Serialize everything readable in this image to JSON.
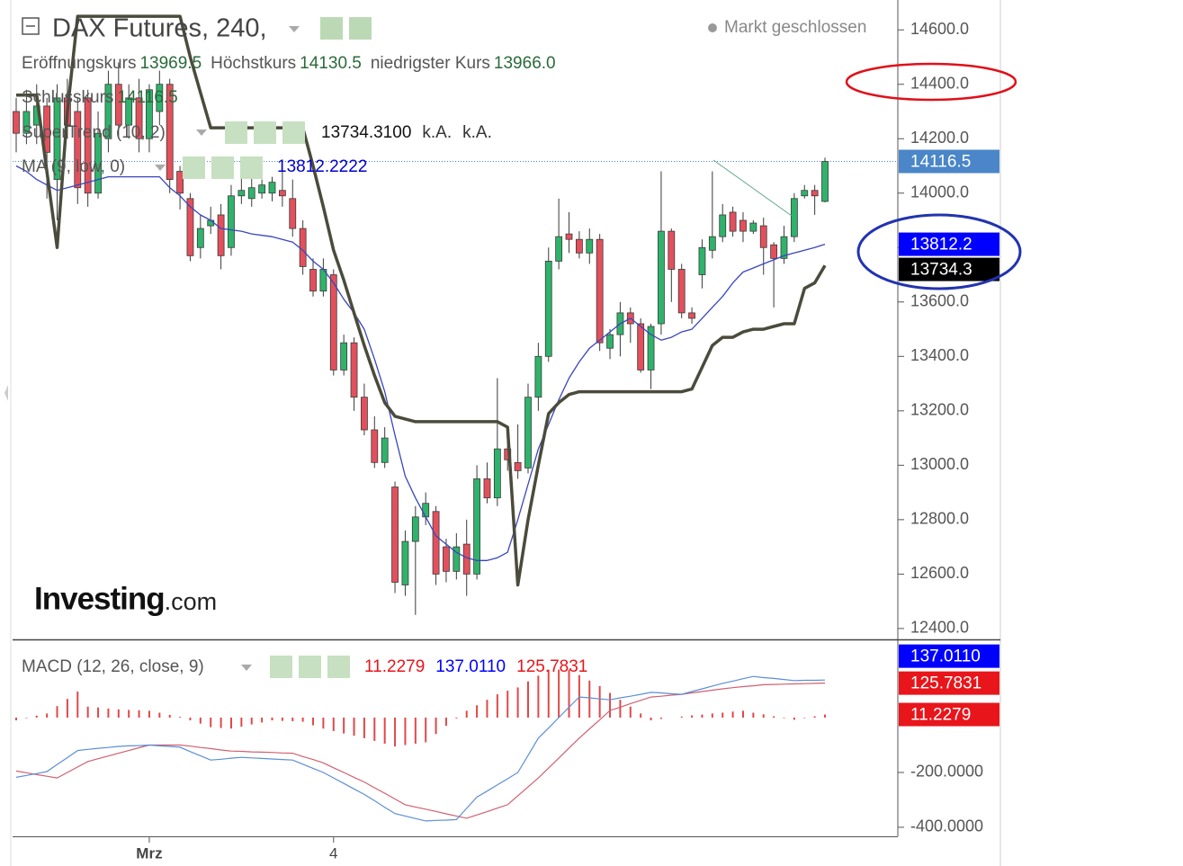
{
  "chart_data": [
    {
      "type": "candlestick",
      "title": "DAX Futures, 240,",
      "status": "Markt geschlossen",
      "ohlc_legend": [
        {
          "label": "Eröffnungskurs",
          "value": "13969.5"
        },
        {
          "label": "Höchstkurs",
          "value": "14130.5"
        },
        {
          "label": "niedrigster Kurs",
          "value": "13966.0"
        },
        {
          "label": "Schlusskurs",
          "value": "14116.5"
        }
      ],
      "categories": [
        null,
        null,
        null,
        null,
        null,
        null,
        null,
        null,
        null,
        null,
        null,
        null,
        null,
        "Mrz",
        null,
        null,
        null,
        null,
        null,
        null,
        null,
        null,
        null,
        null,
        null,
        null,
        null,
        null,
        null,
        null,
        null,
        "4",
        null,
        null,
        null,
        null,
        null,
        null,
        null,
        null,
        null,
        null,
        null,
        null,
        null,
        null,
        null,
        null,
        null,
        null,
        null,
        null,
        null,
        null,
        null,
        null,
        null,
        null,
        null,
        null,
        null,
        null,
        null,
        null,
        null,
        null,
        null,
        null,
        null,
        null,
        null,
        null,
        null,
        null,
        null,
        null,
        null,
        null,
        null,
        null
      ],
      "open": [
        14300,
        14220,
        14250,
        14320,
        14050,
        14350,
        14300,
        14350,
        14000,
        14200,
        14400,
        14250,
        14350,
        14200,
        14300,
        14400,
        14080,
        13980,
        13800,
        13880,
        13920,
        13800,
        13990,
        13980,
        14000,
        14000,
        14010,
        13980,
        13870,
        13720,
        13640,
        13700,
        13350,
        13450,
        13250,
        13130,
        13010,
        12920,
        12560,
        12720,
        12810,
        12830,
        12700,
        12610,
        12710,
        12600,
        12950,
        12880,
        13060,
        13010,
        12990,
        13250,
        13400,
        13750,
        13850,
        13830,
        13780,
        13830,
        13430,
        13480,
        13560,
        13520,
        13350,
        13520,
        13860,
        13720,
        13560,
        13700,
        13790,
        13840,
        13930,
        13900,
        13860,
        13880,
        13810,
        13760,
        13840,
        13990,
        14010,
        13969.5
      ],
      "high": [
        14350,
        14380,
        14400,
        14350,
        14400,
        14420,
        14350,
        14380,
        14300,
        14450,
        14480,
        14400,
        14420,
        14400,
        14450,
        14420,
        14100,
        14000,
        13920,
        13950,
        13960,
        14030,
        14080,
        14120,
        14050,
        14060,
        14080,
        14050,
        13900,
        13760,
        13760,
        13720,
        13480,
        13470,
        13300,
        13180,
        13140,
        12940,
        12760,
        12850,
        12900,
        12850,
        12730,
        12750,
        12800,
        13000,
        13010,
        13320,
        13100,
        13150,
        13300,
        13450,
        13800,
        13980,
        13930,
        13860,
        13870,
        13850,
        13500,
        13600,
        13580,
        13540,
        13520,
        14080,
        13870,
        13740,
        13580,
        13830,
        14080,
        13960,
        13950,
        13930,
        13900,
        13910,
        13820,
        13880,
        14000,
        14030,
        14030,
        14130.5
      ],
      "low": [
        14150,
        14180,
        14180,
        13980,
        13900,
        14200,
        13960,
        13950,
        13980,
        14150,
        14200,
        14200,
        14150,
        14150,
        14250,
        14000,
        13940,
        13750,
        13760,
        13850,
        13720,
        13770,
        13960,
        13950,
        13980,
        13970,
        13950,
        13840,
        13700,
        13620,
        13620,
        13330,
        13330,
        13200,
        13110,
        12990,
        12990,
        12530,
        12520,
        12450,
        12780,
        12560,
        12570,
        12580,
        12520,
        12580,
        12860,
        12850,
        12980,
        12950,
        12970,
        13200,
        13380,
        13720,
        13780,
        13760,
        13740,
        13420,
        13390,
        13400,
        13450,
        13340,
        13280,
        13480,
        13600,
        13540,
        13520,
        13650,
        13760,
        13820,
        13840,
        13820,
        13850,
        13700,
        13580,
        13740,
        13820,
        13980,
        13920,
        13966
      ],
      "close": [
        14220,
        14300,
        14320,
        14150,
        14350,
        14250,
        14020,
        14000,
        14220,
        14400,
        14250,
        14350,
        14200,
        14380,
        14400,
        14050,
        14000,
        13770,
        13870,
        13900,
        13770,
        13990,
        14010,
        14020,
        14030,
        14040,
        13990,
        13870,
        13730,
        13640,
        13720,
        13350,
        13450,
        13250,
        13130,
        13010,
        13100,
        12570,
        12720,
        12810,
        12860,
        12600,
        12610,
        12700,
        12600,
        12950,
        12880,
        13060,
        13020,
        12980,
        13250,
        13400,
        13750,
        13840,
        13830,
        13780,
        13830,
        13450,
        13480,
        13560,
        13520,
        13350,
        13510,
        13860,
        13720,
        13560,
        13540,
        13800,
        13840,
        13920,
        13860,
        13860,
        13890,
        13800,
        13760,
        13840,
        13980,
        14010,
        13990,
        14116.5
      ],
      "up_color": "#2fb36b",
      "down_color": "#e3505c",
      "last_label": "14116.5",
      "last_label_color": "#4a86c8",
      "series": [
        {
          "name": "SuperTrend (10, 2)",
          "color": "#4b4b3c",
          "values": [
            14360,
            14360,
            14360,
            14080,
            13800,
            14300,
            14650,
            14650,
            14650,
            14650,
            14650,
            14650,
            14650,
            14650,
            14650,
            14650,
            14650,
            14500,
            14370,
            14240,
            14240,
            14240,
            14240,
            14240,
            14240,
            14240,
            14240,
            14240,
            14240,
            14100,
            13950,
            13790,
            13680,
            13560,
            13440,
            13330,
            13230,
            13180,
            13170,
            13160,
            13160,
            13160,
            13160,
            13160,
            13160,
            13160,
            13160,
            13160,
            13140,
            12560,
            12800,
            13000,
            13190,
            13230,
            13260,
            13270,
            13270,
            13270,
            13270,
            13270,
            13270,
            13270,
            13270,
            13270,
            13270,
            13270,
            13280,
            13360,
            13440,
            13470,
            13470,
            13490,
            13500,
            13500,
            13510,
            13520,
            13520,
            13650,
            13670,
            13734.31
          ],
          "legend_values": [
            "13734.3100",
            "k.A.",
            "k.A."
          ],
          "legend_color": "#111111",
          "last_label": "13734.3",
          "last_label_color": "#000000"
        },
        {
          "name": "MA (9, low, 0)",
          "color": "#3845c0",
          "values": [
            14100,
            14080,
            14050,
            14030,
            14010,
            14020,
            14030,
            14040,
            14050,
            14060,
            14060,
            14060,
            14060,
            14060,
            14060,
            14020,
            13990,
            13950,
            13920,
            13900,
            13870,
            13865,
            13860,
            13850,
            13845,
            13840,
            13830,
            13820,
            13790,
            13750,
            13720,
            13670,
            13610,
            13560,
            13500,
            13390,
            13270,
            13110,
            12960,
            12880,
            12810,
            12740,
            12710,
            12680,
            12660,
            12650,
            12650,
            12660,
            12680,
            12800,
            12930,
            13060,
            13150,
            13240,
            13320,
            13380,
            13430,
            13460,
            13490,
            13520,
            13540,
            13510,
            13480,
            13460,
            13470,
            13490,
            13500,
            13540,
            13580,
            13620,
            13670,
            13710,
            13725,
            13740,
            13755,
            13770,
            13780,
            13790,
            13800,
            13812.2222
          ],
          "legend_values": [
            "13812.2222"
          ],
          "legend_color": "#0000cc",
          "last_label": "13812.2",
          "last_label_color": "#0000ff"
        }
      ],
      "ylim": [
        12360,
        14680
      ],
      "yticks": [
        {
          "value": 14600,
          "label": "14600.0"
        },
        {
          "value": 14400,
          "label": "14400.0"
        },
        {
          "value": 14200,
          "label": "14200.0"
        },
        {
          "value": 14000,
          "label": "14000.0"
        },
        {
          "value": 13800,
          "label": "13800.0"
        },
        {
          "value": 13600,
          "label": "13600.0"
        },
        {
          "value": 13400,
          "label": "13400.0"
        },
        {
          "value": 13200,
          "label": "13200.0"
        },
        {
          "value": 13000,
          "label": "13000.0"
        },
        {
          "value": 12800,
          "label": "12800.0"
        },
        {
          "value": 12600,
          "label": "12600.0"
        },
        {
          "value": 12400,
          "label": "12400.0"
        }
      ],
      "watermark": [
        "Investing",
        ".com"
      ]
    },
    {
      "type": "macd",
      "name": "MACD (12, 26, close, 9)",
      "signal": {
        "color": "#d06070",
        "values": [
          -195,
          -201,
          -208,
          -214,
          -220,
          -200,
          -180,
          -160,
          -150,
          -140,
          -130,
          -120,
          -110,
          -100,
          -100,
          -100,
          -100,
          -104,
          -109,
          -113,
          -118,
          -122,
          -123,
          -125,
          -126,
          -127,
          -129,
          -130,
          -142,
          -153,
          -165,
          -183,
          -200,
          -218,
          -235,
          -256,
          -276,
          -297,
          -318,
          -326,
          -334,
          -342,
          -351,
          -359,
          -367,
          -355,
          -343,
          -330,
          -318,
          -285,
          -253,
          -220,
          -184,
          -148,
          -111,
          -75,
          -41,
          -8,
          26,
          38,
          51,
          63,
          75,
          78,
          82,
          85,
          90,
          95,
          100,
          105,
          109,
          113,
          116,
          120,
          121,
          122,
          123,
          124,
          125,
          125.7831
        ],
        "legend_value": "125.7831",
        "last_label": "125.7831",
        "label_color": "#e8151b"
      },
      "histogram": {
        "color": "#e04848",
        "values": [
          -10,
          -2,
          7,
          15,
          42,
          68,
          95,
          40,
          37,
          33,
          30,
          28,
          27,
          25,
          18,
          10,
          3,
          -10,
          -22,
          -35,
          -38,
          -40,
          -33,
          -25,
          -18,
          -10,
          -12,
          -13,
          -15,
          -28,
          -40,
          -49,
          -58,
          -66,
          -75,
          -85,
          -95,
          -105,
          -100,
          -95,
          -90,
          -60,
          -30,
          -3,
          25,
          45,
          65,
          85,
          98,
          110,
          132,
          153,
          175,
          175,
          175,
          155,
          135,
          115,
          90,
          65,
          40,
          15,
          -10,
          -5,
          0,
          4,
          8,
          11,
          15,
          18,
          22,
          25,
          18,
          12,
          5,
          -2,
          -8,
          -2,
          5,
          11.2279
        ],
        "legend_value": "11.2279",
        "last_label": "11.2279",
        "label_color": "#e8151b"
      },
      "macd": {
        "color": "#5b8fd6",
        "values": [
          -218,
          -211,
          -204,
          -197,
          -171,
          -146,
          -120,
          -116,
          -112,
          -109,
          -105,
          -103,
          -102,
          -100,
          -103,
          -105,
          -108,
          -124,
          -139,
          -155,
          -152,
          -148,
          -145,
          -147,
          -149,
          -151,
          -153,
          -155,
          -170,
          -185,
          -200,
          -220,
          -240,
          -260,
          -280,
          -303,
          -327,
          -350,
          -359,
          -368,
          -377,
          -375,
          -374,
          -372,
          -331,
          -290,
          -268,
          -245,
          -223,
          -200,
          -138,
          -75,
          -38,
          0,
          38,
          75,
          72,
          68,
          65,
          72,
          78,
          85,
          92,
          90,
          87,
          85,
          95,
          105,
          115,
          125,
          133,
          142,
          150,
          146,
          143,
          139,
          135,
          136,
          136,
          137.011
        ],
        "legend_value": "137.0110",
        "last_label": "137.0110",
        "label_color": "#0000ff"
      },
      "ylim": [
        -433,
        282
      ],
      "yticks": [
        {
          "value": -200,
          "label": "-200.0000"
        },
        {
          "value": -400,
          "label": "-400.0000"
        }
      ]
    }
  ]
}
